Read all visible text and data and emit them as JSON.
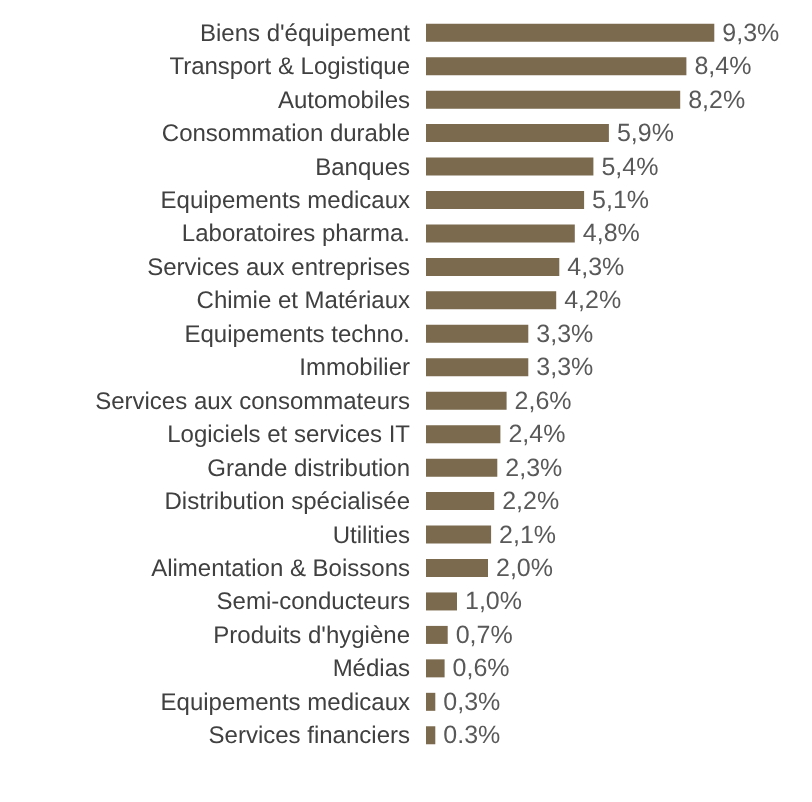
{
  "chart_data": {
    "type": "bar",
    "orientation": "horizontal",
    "color": "#7b6a4e",
    "categories": [
      "Biens d'équipement",
      "Transport & Logistique",
      "Automobiles",
      "Consommation durable",
      "Banques",
      "Equipements medicaux",
      "Laboratoires pharma.",
      "Services aux entreprises",
      "Chimie et Matériaux",
      "Equipements techno.",
      "Immobilier",
      "Services aux consommateurs",
      "Logiciels et services IT",
      "Grande distribution",
      "Distribution spécialisée",
      "Utilities",
      "Alimentation & Boissons",
      "Semi-conducteurs",
      "Produits d'hygiène",
      "Médias",
      "Equipements medicaux",
      "Services financiers"
    ],
    "values": [
      9.3,
      8.4,
      8.2,
      5.9,
      5.4,
      5.1,
      4.8,
      4.3,
      4.2,
      3.3,
      3.3,
      2.6,
      2.4,
      2.3,
      2.2,
      2.1,
      2.0,
      1.0,
      0.7,
      0.6,
      0.3,
      0.3
    ],
    "value_labels": [
      "9,3%",
      "8,4%",
      "8,2%",
      "5,9%",
      "5,4%",
      "5,1%",
      "4,8%",
      "4,3%",
      "4,2%",
      "3,3%",
      "3,3%",
      "2,6%",
      "2,4%",
      "2,3%",
      "2,2%",
      "2,1%",
      "2,0%",
      "1,0%",
      "0,7%",
      "0,6%",
      "0,3%",
      "0.3%"
    ],
    "grid": false
  }
}
